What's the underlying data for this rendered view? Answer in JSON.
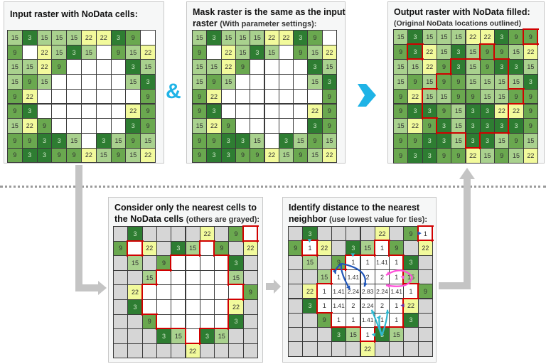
{
  "palette": {
    "3": "#2e7d32",
    "9": "#6aa84f",
    "15": "#a9d18e",
    "22": "#f2fa9c",
    "nodata": "#ffffff",
    "gray": "#d6d6d6",
    "outline": "#d00000",
    "connector": "#c4c4c4",
    "accent_cyan": "#1fb3e6",
    "arrow_blue": "#1f55b8",
    "arrow_pink": "#ff4fd8",
    "arrow_purple": "#6a2aa0",
    "arrow_teal": "#2fb8d0"
  },
  "operator_symbol": "&",
  "panels": {
    "input": {
      "title": "Input raster with NoData cells:",
      "grid": [
        [
          "15",
          "3",
          "15",
          "15",
          "15",
          "22",
          "22",
          "3",
          "9",
          ""
        ],
        [
          "9",
          "",
          "22",
          "15",
          "3",
          "15",
          "",
          "9",
          "15",
          "22"
        ],
        [
          "15",
          "15",
          "22",
          "9",
          "",
          "",
          "",
          "",
          "3",
          "15"
        ],
        [
          "15",
          "9",
          "15",
          "",
          "",
          "",
          "",
          "",
          "15",
          "3"
        ],
        [
          "9",
          "22",
          "",
          "",
          "",
          "",
          "",
          "",
          "",
          "9"
        ],
        [
          "9",
          "3",
          "",
          "",
          "",
          "",
          "",
          "",
          "22",
          "9"
        ],
        [
          "15",
          "22",
          "9",
          "",
          "",
          "",
          "",
          "",
          "3",
          "9"
        ],
        [
          "9",
          "9",
          "3",
          "3",
          "15",
          "",
          "3",
          "15",
          "9",
          "15"
        ],
        [
          "9",
          "3",
          "3",
          "9",
          "9",
          "22",
          "15",
          "9",
          "15",
          "22"
        ]
      ]
    },
    "mask": {
      "title": "Mask raster is the same as the input",
      "title_line2": "raster",
      "subtitle": "(With parameter settings):"
    },
    "output": {
      "title": "Output raster with NoData filled:",
      "subtitle": "(Original NoData locations outlined)",
      "grid": [
        [
          "15",
          "3",
          "15",
          "15",
          "15",
          "22",
          "22",
          "3",
          "9",
          "9"
        ],
        [
          "9",
          "3",
          "22",
          "15",
          "3",
          "15",
          "9",
          "9",
          "15",
          "22"
        ],
        [
          "15",
          "15",
          "22",
          "9",
          "3",
          "15",
          "9",
          "3",
          "3",
          "15"
        ],
        [
          "15",
          "9",
          "15",
          "9",
          "9",
          "15",
          "15",
          "15",
          "15",
          "3"
        ],
        [
          "9",
          "22",
          "15",
          "15",
          "9",
          "9",
          "15",
          "15",
          "9",
          "9"
        ],
        [
          "9",
          "3",
          "3",
          "9",
          "15",
          "3",
          "3",
          "22",
          "22",
          "9"
        ],
        [
          "15",
          "22",
          "9",
          "3",
          "15",
          "3",
          "3",
          "3",
          "3",
          "9"
        ],
        [
          "9",
          "9",
          "3",
          "3",
          "15",
          "3",
          "3",
          "15",
          "9",
          "15"
        ],
        [
          "9",
          "3",
          "3",
          "9",
          "9",
          "22",
          "15",
          "9",
          "15",
          "22"
        ]
      ]
    },
    "nearest": {
      "title": "Consider only the nearest cells to",
      "title_line2": "the NoData cells",
      "subtitle": "(others are grayed):",
      "grid": [
        [
          null,
          "3",
          null,
          null,
          null,
          null,
          "22",
          null,
          "9",
          ""
        ],
        [
          "9",
          "",
          "22",
          null,
          "3",
          "15",
          "",
          "9",
          null,
          "22"
        ],
        [
          null,
          "15",
          null,
          "9",
          "",
          "",
          "",
          "",
          "3",
          null
        ],
        [
          null,
          null,
          "15",
          "",
          "",
          "",
          "",
          "",
          "15",
          null
        ],
        [
          null,
          "22",
          "",
          "",
          "",
          "",
          "",
          "",
          "",
          "9"
        ],
        [
          null,
          "3",
          "",
          "",
          "",
          "",
          "",
          "",
          "22",
          null
        ],
        [
          null,
          null,
          "9",
          "",
          "",
          "",
          "",
          "",
          "3",
          null
        ],
        [
          null,
          null,
          null,
          "3",
          "15",
          "",
          "3",
          "15",
          null,
          null
        ],
        [
          null,
          null,
          null,
          null,
          null,
          "22",
          null,
          null,
          null,
          null
        ]
      ]
    },
    "distance": {
      "title": "Identify distance to the nearest",
      "title_line2": "neighbor",
      "subtitle": "(use lowest value for ties):",
      "grid": [
        [
          null,
          "3",
          null,
          null,
          null,
          null,
          "22",
          null,
          "9",
          "1"
        ],
        [
          "9",
          "1",
          "22",
          null,
          "3",
          "15",
          "1",
          "9",
          null,
          "22"
        ],
        [
          null,
          "15",
          null,
          "9",
          "1",
          "1",
          "1.41",
          "1",
          "3",
          null
        ],
        [
          null,
          null,
          "15",
          "1",
          "1.41",
          "2",
          "2",
          "1",
          "15",
          null
        ],
        [
          null,
          "22",
          "1",
          "1.41",
          "2.24",
          "2.83",
          "2.24",
          "1.41",
          "1",
          "9"
        ],
        [
          null,
          "3",
          "1",
          "1.41",
          "2",
          "2.24",
          "2",
          "1",
          "22",
          null
        ],
        [
          null,
          null,
          "9",
          "1",
          "1",
          "1.41",
          "1",
          "1",
          "3",
          null
        ],
        [
          null,
          null,
          null,
          "3",
          "15",
          "1",
          "3",
          "15",
          null,
          null
        ],
        [
          null,
          null,
          null,
          null,
          null,
          "22",
          null,
          null,
          null,
          null
        ]
      ]
    }
  }
}
